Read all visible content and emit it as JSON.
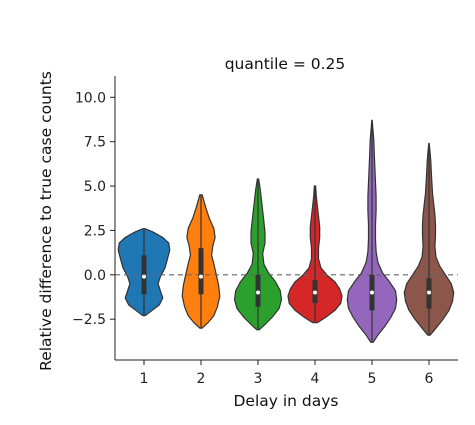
{
  "chart_data": {
    "type": "violin",
    "title": "quantile = 0.25",
    "xlabel": "Delay in days",
    "ylabel": "Relative difference to true case  counts",
    "categories": [
      "1",
      "2",
      "3",
      "4",
      "5",
      "6"
    ],
    "ylim": [
      -4.8,
      11.2
    ],
    "yticks": [
      -2.5,
      0.0,
      2.5,
      5.0,
      7.5,
      10.0
    ],
    "ytick_labels": [
      "−2.5",
      "0.0",
      "2.5",
      "5.0",
      "7.5",
      "10.0"
    ],
    "reference_line": {
      "y": 0.0,
      "style": "dashed"
    },
    "grid": false,
    "legend": "none",
    "violins": [
      {
        "category": "1",
        "color": "#1f77b4",
        "min": -2.3,
        "max": 2.6,
        "median": -0.1,
        "q1": -1.1,
        "q3": 1.1,
        "density": [
          [
            -2.3,
            0.01
          ],
          [
            -2.0,
            0.07
          ],
          [
            -1.7,
            0.13
          ],
          [
            -1.3,
            0.16
          ],
          [
            -0.9,
            0.14
          ],
          [
            -0.5,
            0.12
          ],
          [
            -0.1,
            0.14
          ],
          [
            0.4,
            0.18
          ],
          [
            0.9,
            0.2
          ],
          [
            1.4,
            0.22
          ],
          [
            1.8,
            0.21
          ],
          [
            2.1,
            0.16
          ],
          [
            2.4,
            0.08
          ],
          [
            2.6,
            0.01
          ]
        ]
      },
      {
        "category": "2",
        "color": "#ff7f0e",
        "min": -3.0,
        "max": 4.5,
        "median": -0.1,
        "q1": -1.1,
        "q3": 1.5,
        "density": [
          [
            -3.0,
            0.01
          ],
          [
            -2.7,
            0.06
          ],
          [
            -2.3,
            0.11
          ],
          [
            -1.8,
            0.14
          ],
          [
            -1.2,
            0.16
          ],
          [
            -0.6,
            0.15
          ],
          [
            0.0,
            0.13
          ],
          [
            0.6,
            0.11
          ],
          [
            1.1,
            0.09
          ],
          [
            1.6,
            0.1
          ],
          [
            2.1,
            0.12
          ],
          [
            2.6,
            0.11
          ],
          [
            3.2,
            0.07
          ],
          [
            3.8,
            0.04
          ],
          [
            4.5,
            0.01
          ]
        ]
      },
      {
        "category": "3",
        "color": "#2ca02c",
        "min": -3.1,
        "max": 5.4,
        "median": -1.0,
        "q1": -1.8,
        "q3": 0.0,
        "density": [
          [
            -3.1,
            0.01
          ],
          [
            -2.8,
            0.06
          ],
          [
            -2.4,
            0.12
          ],
          [
            -1.9,
            0.18
          ],
          [
            -1.4,
            0.2
          ],
          [
            -0.9,
            0.19
          ],
          [
            -0.4,
            0.15
          ],
          [
            0.1,
            0.09
          ],
          [
            0.6,
            0.05
          ],
          [
            1.2,
            0.04
          ],
          [
            1.8,
            0.06
          ],
          [
            2.4,
            0.06
          ],
          [
            3.0,
            0.05
          ],
          [
            3.6,
            0.04
          ],
          [
            4.2,
            0.03
          ],
          [
            4.8,
            0.02
          ],
          [
            5.4,
            0.005
          ]
        ]
      },
      {
        "category": "4",
        "color": "#d62728",
        "min": -2.7,
        "max": 5.0,
        "median": -1.0,
        "q1": -1.6,
        "q3": -0.3,
        "density": [
          [
            -2.7,
            0.02
          ],
          [
            -2.4,
            0.09
          ],
          [
            -2.0,
            0.17
          ],
          [
            -1.6,
            0.22
          ],
          [
            -1.2,
            0.23
          ],
          [
            -0.8,
            0.21
          ],
          [
            -0.4,
            0.17
          ],
          [
            0.0,
            0.1
          ],
          [
            0.4,
            0.05
          ],
          [
            0.9,
            0.03
          ],
          [
            1.5,
            0.03
          ],
          [
            2.1,
            0.04
          ],
          [
            2.7,
            0.04
          ],
          [
            3.3,
            0.03
          ],
          [
            3.9,
            0.02
          ],
          [
            4.5,
            0.01
          ],
          [
            5.0,
            0.005
          ]
        ]
      },
      {
        "category": "5",
        "color": "#9467bd",
        "min": -3.8,
        "max": 8.7,
        "median": -1.0,
        "q1": -2.0,
        "q3": 0.0,
        "density": [
          [
            -3.8,
            0.01
          ],
          [
            -3.4,
            0.05
          ],
          [
            -2.9,
            0.11
          ],
          [
            -2.4,
            0.16
          ],
          [
            -1.9,
            0.2
          ],
          [
            -1.4,
            0.21
          ],
          [
            -0.9,
            0.2
          ],
          [
            -0.4,
            0.15
          ],
          [
            0.1,
            0.09
          ],
          [
            0.7,
            0.05
          ],
          [
            1.3,
            0.035
          ],
          [
            2.0,
            0.03
          ],
          [
            2.8,
            0.03
          ],
          [
            3.6,
            0.035
          ],
          [
            4.4,
            0.035
          ],
          [
            5.2,
            0.03
          ],
          [
            6.0,
            0.025
          ],
          [
            6.8,
            0.02
          ],
          [
            7.6,
            0.015
          ],
          [
            8.2,
            0.008
          ],
          [
            8.7,
            0.002
          ]
        ]
      },
      {
        "category": "6",
        "color": "#8c564b",
        "min": -3.4,
        "max": 7.4,
        "median": -1.0,
        "q1": -1.9,
        "q3": -0.2,
        "density": [
          [
            -3.4,
            0.01
          ],
          [
            -3.0,
            0.06
          ],
          [
            -2.5,
            0.12
          ],
          [
            -2.0,
            0.17
          ],
          [
            -1.5,
            0.2
          ],
          [
            -1.0,
            0.21
          ],
          [
            -0.5,
            0.19
          ],
          [
            0.0,
            0.14
          ],
          [
            0.5,
            0.09
          ],
          [
            1.0,
            0.06
          ],
          [
            1.6,
            0.05
          ],
          [
            2.2,
            0.055
          ],
          [
            2.8,
            0.055
          ],
          [
            3.4,
            0.05
          ],
          [
            4.0,
            0.04
          ],
          [
            4.6,
            0.03
          ],
          [
            5.2,
            0.025
          ],
          [
            5.8,
            0.02
          ],
          [
            6.4,
            0.015
          ],
          [
            7.0,
            0.008
          ],
          [
            7.4,
            0.002
          ]
        ]
      }
    ]
  }
}
